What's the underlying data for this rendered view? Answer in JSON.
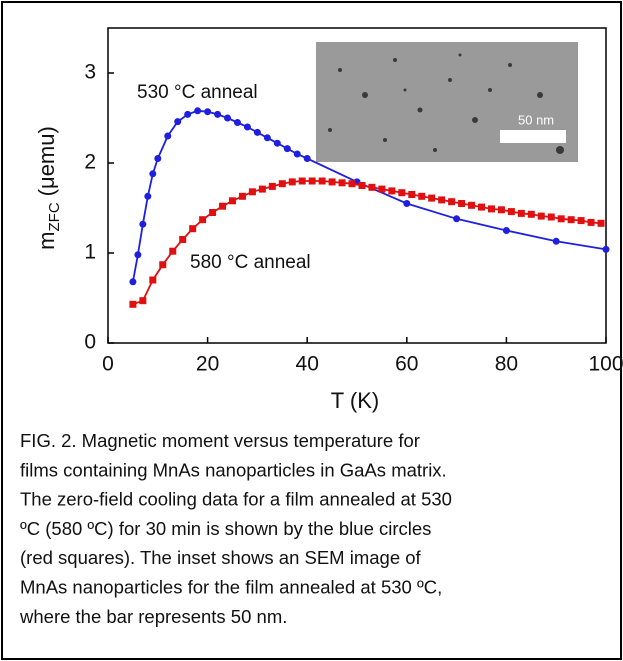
{
  "chart_data": {
    "type": "line",
    "xlabel": "T (K)",
    "ylabel": "m",
    "ylabel_sub": "ZFC",
    "ylabel_unit": "(μemu)",
    "xlim": [
      0,
      100
    ],
    "xticks": [
      0,
      20,
      40,
      60,
      80,
      100
    ],
    "ylim": [
      0,
      3.5
    ],
    "yticks": [
      0,
      1,
      2,
      3
    ],
    "annotations": [
      "530 °C anneal",
      "580 °C anneal"
    ],
    "inset_scale_label": "50 nm",
    "series": [
      {
        "color": "#1f1fe0",
        "marker": "circle",
        "x": [
          5,
          6,
          7,
          8,
          9,
          10,
          12,
          14,
          16,
          18,
          20,
          22,
          24,
          26,
          28,
          30,
          32,
          34,
          36,
          38,
          40,
          50,
          60,
          70,
          80,
          90,
          100
        ],
        "values": [
          0.68,
          0.98,
          1.32,
          1.63,
          1.88,
          2.05,
          2.3,
          2.46,
          2.54,
          2.58,
          2.57,
          2.54,
          2.5,
          2.45,
          2.4,
          2.34,
          2.28,
          2.22,
          2.16,
          2.1,
          2.05,
          1.79,
          1.55,
          1.38,
          1.25,
          1.13,
          1.04
        ]
      },
      {
        "color": "#e01010",
        "marker": "square",
        "x": [
          5,
          7,
          9,
          11,
          13,
          15,
          17,
          19,
          21,
          23,
          25,
          27,
          29,
          31,
          33,
          35,
          37,
          39,
          41,
          43,
          45,
          47,
          49,
          51,
          53,
          55,
          57,
          59,
          61,
          63,
          65,
          67,
          69,
          71,
          73,
          75,
          77,
          79,
          81,
          83,
          85,
          87,
          89,
          91,
          93,
          95,
          97,
          99
        ],
        "values": [
          0.43,
          0.47,
          0.7,
          0.87,
          1.02,
          1.15,
          1.27,
          1.37,
          1.45,
          1.52,
          1.58,
          1.63,
          1.68,
          1.71,
          1.74,
          1.77,
          1.79,
          1.8,
          1.8,
          1.8,
          1.79,
          1.78,
          1.77,
          1.75,
          1.73,
          1.71,
          1.69,
          1.67,
          1.65,
          1.63,
          1.61,
          1.59,
          1.57,
          1.55,
          1.53,
          1.51,
          1.49,
          1.48,
          1.46,
          1.44,
          1.43,
          1.41,
          1.4,
          1.38,
          1.37,
          1.36,
          1.34,
          1.33
        ]
      }
    ]
  },
  "caption": [
    "FIG. 2. Magnetic moment versus temperature for",
    "films containing MnAs nanoparticles in GaAs matrix.",
    "The zero-field cooling data for a film annealed at 530",
    "ºC (580 ºC) for 30 min is shown by the blue circles",
    "(red squares). The inset shows an SEM image of",
    "MnAs nanoparticles for the film annealed at 530 ºC,",
    "where the bar represents 50 nm."
  ]
}
